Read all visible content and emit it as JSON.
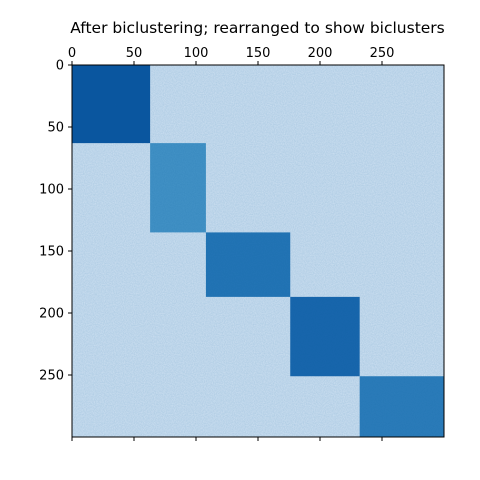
{
  "chart_data": {
    "type": "heatmap",
    "title": "After biclustering; rearranged to show biclusters",
    "colormap": "Blues",
    "background_color": "#cfe1f2",
    "xlim": [
      0,
      300
    ],
    "ylim": [
      300,
      0
    ],
    "x_ticks": [
      0,
      50,
      100,
      150,
      200,
      250
    ],
    "x_tick_labels": [
      "0",
      "50",
      "100",
      "150",
      "200",
      "250"
    ],
    "y_ticks": [
      0,
      50,
      100,
      150,
      200,
      250
    ],
    "y_tick_labels": [
      "0",
      "50",
      "100",
      "150",
      "200",
      "250"
    ],
    "x_tick_position": "top",
    "grid": false,
    "biclusters": [
      {
        "rows": [
          0,
          63
        ],
        "cols": [
          0,
          63
        ],
        "color": "#0b56a0"
      },
      {
        "rows": [
          63,
          135
        ],
        "cols": [
          63,
          108
        ],
        "color": "#4493c7"
      },
      {
        "rows": [
          135,
          187
        ],
        "cols": [
          108,
          176
        ],
        "color": "#2475b6"
      },
      {
        "rows": [
          187,
          251
        ],
        "cols": [
          176,
          232
        ],
        "color": "#1966ad"
      },
      {
        "rows": [
          251,
          300
        ],
        "cols": [
          232,
          300
        ],
        "color": "#2d7dbb"
      }
    ]
  }
}
